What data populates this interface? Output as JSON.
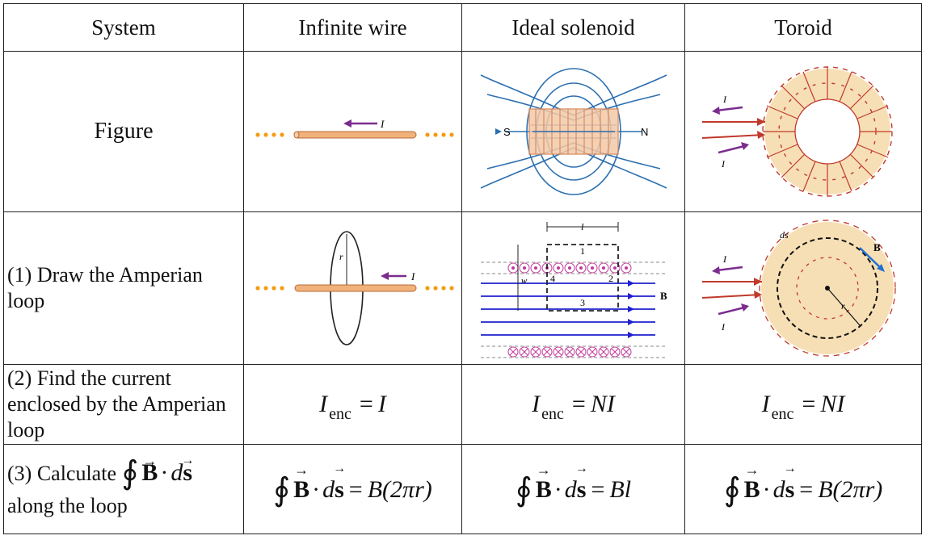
{
  "header": {
    "col1": "System",
    "col2": "Infinite wire",
    "col3": "Ideal solenoid",
    "col4": "Toroid"
  },
  "rows": {
    "figure": {
      "label": "Figure"
    },
    "loop": {
      "label": "(1) Draw the Amperian loop"
    },
    "enclosed": {
      "label": "(2) Find the current enclosed by the Amperian loop"
    },
    "calc": {
      "label_prefix": "(3) Calculate",
      "label_suffix": "along the loop"
    }
  },
  "figure_labels": {
    "current": "I",
    "radius": "r",
    "south": "S",
    "north": "N",
    "solenoid_len": "l",
    "solenoid_w": "w",
    "path1": "1",
    "path2": "2",
    "path3": "3",
    "path4": "4",
    "bfield": "B",
    "ds": "ds"
  },
  "equations": {
    "enc_symbol": "I",
    "enc_sub": "enc",
    "enc_wire_rhs": "I",
    "enc_sol_rhs": "NI",
    "enc_tor_rhs": "NI",
    "integral": "∮",
    "B": "B",
    "dot": "·",
    "d": "d",
    "s": "s",
    "eq": "=",
    "wire_rhs": "B(2πr)",
    "sol_rhs": "Bl",
    "tor_rhs": "B(2πr)"
  },
  "colors": {
    "wire": "#f0b27a",
    "wire_dots": "#f39c12",
    "arrow_purple": "#7b2d8e",
    "arrow_red": "#c0392b",
    "field_blue": "#2c6fb0",
    "coil_orange": "#e8a87c",
    "toroid_fill": "#f7dfb5",
    "toroid_coil": "#c0392b",
    "b_line": "#1f1fd1"
  }
}
